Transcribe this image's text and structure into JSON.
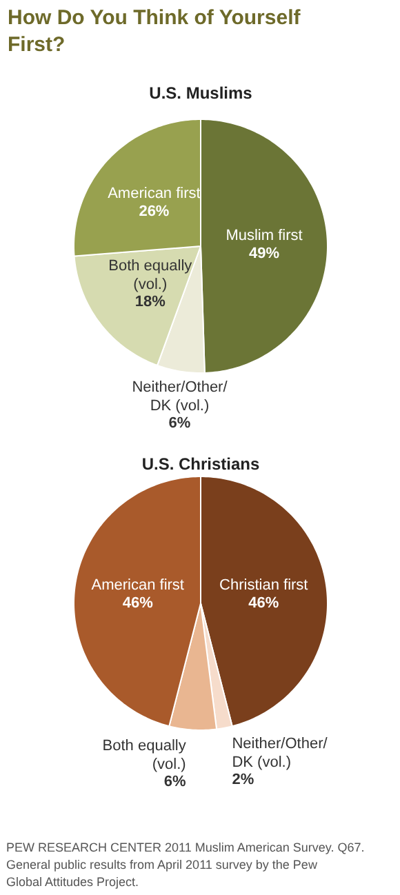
{
  "chart_data": [
    {
      "type": "pie",
      "title": "How Do You Think of Yourself First?",
      "subtitle": "U.S. Muslims",
      "categories": [
        "Muslim first",
        "Neither/Other/ DK (vol.)",
        "Both equally (vol.)",
        "American first"
      ],
      "values": [
        49,
        6,
        18,
        26
      ],
      "colors": [
        "#6b7536",
        "#ecebd9",
        "#d6dbb0",
        "#98a14f"
      ],
      "value_labels": [
        "49%",
        "6%",
        "18%",
        "26%"
      ]
    },
    {
      "type": "pie",
      "subtitle": "U.S. Christians",
      "categories": [
        "Christian first",
        "Neither/Other/ DK (vol.)",
        "Both equally (vol.)",
        "American first"
      ],
      "values": [
        46,
        2,
        6,
        46
      ],
      "colors": [
        "#7a3f1c",
        "#f6dccb",
        "#e9b691",
        "#a95a2b"
      ],
      "value_labels": [
        "46%",
        "2%",
        "6%",
        "46%"
      ],
      "annotations": [
        "PEW RESEARCH CENTER 2011 Muslim American Survey. Q67. General public results from April 2011 survey by the Pew Global Attitudes Project."
      ]
    }
  ]
}
